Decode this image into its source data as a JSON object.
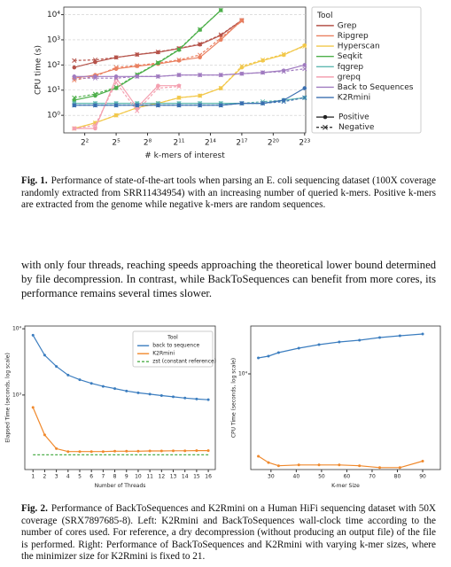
{
  "chart_data": [
    {
      "type": "line",
      "ylabel": "CPU time (s)",
      "xlabel": "# k-mers of interest",
      "xscale": "log2",
      "yscale": "log",
      "grid": true,
      "legend_title": "Tool",
      "style_legend": [
        "Positive",
        "Negative"
      ],
      "x": [
        2,
        8,
        32,
        128,
        512,
        2048,
        8192,
        32768,
        131072,
        524288,
        2097152,
        8388608
      ],
      "xlim": [
        1,
        9000000
      ],
      "xticks": [
        {
          "value": 4,
          "label": "2²"
        },
        {
          "value": 32,
          "label": "2⁵"
        },
        {
          "value": 256,
          "label": "2⁸"
        },
        {
          "value": 2048,
          "label": "2¹¹"
        },
        {
          "value": 16384,
          "label": "2¹⁴"
        },
        {
          "value": 131072,
          "label": "2¹⁷"
        },
        {
          "value": 1048576,
          "label": "2²⁰"
        },
        {
          "value": 8388608,
          "label": "2²³"
        }
      ],
      "ylim": [
        0.2,
        20000
      ],
      "yticks": [
        {
          "value": 1,
          "label": "10⁰"
        },
        {
          "value": 10,
          "label": "10¹"
        },
        {
          "value": 100,
          "label": "10²"
        },
        {
          "value": 1000,
          "label": "10³"
        },
        {
          "value": 10000,
          "label": "10⁴"
        }
      ],
      "series": [
        {
          "name": "Grep",
          "color": "#b5534a",
          "values": [
            80,
            130,
            200,
            260,
            320,
            450,
            650,
            1500,
            6000,
            null,
            null,
            null
          ],
          "negative_values": [
            150,
            160,
            200,
            260,
            330,
            460,
            680,
            1600,
            6000,
            null,
            null,
            null
          ]
        },
        {
          "name": "Ripgrep",
          "color": "#ea8060",
          "values": [
            30,
            40,
            70,
            90,
            110,
            150,
            200,
            1000,
            6000,
            null,
            null,
            null
          ],
          "negative_values": [
            25,
            35,
            80,
            95,
            120,
            160,
            250,
            1200,
            5500,
            null,
            null,
            null
          ]
        },
        {
          "name": "Hyperscan",
          "color": "#f2c84b",
          "values": [
            0.3,
            0.5,
            1,
            2,
            3,
            5,
            6,
            12,
            80,
            150,
            250,
            600
          ],
          "negative_values": [
            0.3,
            0.5,
            1,
            2,
            3,
            5,
            6,
            12,
            90,
            160,
            270,
            550
          ]
        },
        {
          "name": "Seqkit",
          "color": "#4daf4a",
          "values": [
            4,
            6,
            12,
            40,
            120,
            400,
            2500,
            15000,
            null,
            null,
            null,
            null
          ],
          "negative_values": [
            5,
            7,
            13,
            42,
            125,
            420,
            2600,
            15000,
            null,
            null,
            null,
            null
          ]
        },
        {
          "name": "fqgrep",
          "color": "#5fb8b0",
          "values": [
            3,
            3,
            3,
            3,
            3,
            3,
            3,
            3,
            3,
            3,
            4,
            5
          ],
          "negative_values": [
            3,
            3,
            3,
            3,
            3,
            3,
            3,
            3,
            3,
            3.5,
            4,
            5
          ]
        },
        {
          "name": "grepq",
          "color": "#f4a0b0",
          "values": [
            0.3,
            0.3,
            30,
            2,
            15,
            15,
            null,
            null,
            null,
            null,
            null,
            null
          ],
          "negative_values": [
            0.3,
            0.4,
            20,
            1.5,
            12,
            14,
            null,
            null,
            null,
            null,
            null,
            null
          ]
        },
        {
          "name": "Back to Sequences",
          "color": "#a07bc0",
          "values": [
            35,
            35,
            35,
            35,
            35,
            40,
            40,
            40,
            45,
            50,
            60,
            100
          ],
          "negative_values": [
            30,
            30,
            30,
            35,
            35,
            40,
            40,
            40,
            45,
            50,
            55,
            70
          ]
        },
        {
          "name": "K2Rmini",
          "color": "#3a6fb0",
          "values": [
            2.5,
            2.5,
            2.5,
            2.5,
            2.5,
            2.5,
            2.5,
            2.5,
            3,
            3,
            4,
            12
          ],
          "negative_values": [
            2.5,
            2.5,
            2.5,
            2.5,
            2.5,
            2.5,
            2.5,
            2.5,
            3,
            3,
            3.5,
            5
          ]
        }
      ]
    },
    {
      "type": "line",
      "ylabel": "Elapsed Time (seconds, log scale)",
      "xlabel": "Number of Threads",
      "xscale": "linear",
      "yscale": "log",
      "legend_title": "Tool",
      "x": [
        1,
        2,
        3,
        4,
        5,
        6,
        7,
        8,
        9,
        10,
        11,
        12,
        13,
        14,
        15,
        16
      ],
      "xlim": [
        0.3,
        16.6
      ],
      "xticks": [
        1,
        2,
        3,
        4,
        5,
        6,
        7,
        8,
        9,
        10,
        11,
        12,
        13,
        14,
        15,
        16
      ],
      "ylim": [
        75,
        11000
      ],
      "yticks": [
        {
          "value": 1000,
          "label": "10³"
        },
        {
          "value": 10000,
          "label": "10⁴"
        }
      ],
      "series": [
        {
          "name": "back to sequence",
          "color": "#3b7dbf",
          "values": [
            8000,
            4000,
            2700,
            2000,
            1700,
            1500,
            1350,
            1250,
            1150,
            1080,
            1030,
            980,
            940,
            900,
            870,
            850
          ]
        },
        {
          "name": "K2Rmini",
          "color": "#f0892c",
          "values": [
            650,
            250,
            155,
            140,
            140,
            140,
            140,
            142,
            142,
            142,
            143,
            143,
            144,
            144,
            145,
            145
          ]
        },
        {
          "name": "zst (constant reference)",
          "color": "#4daf4a",
          "line_style": "dashed",
          "values": [
            125,
            125,
            125,
            125,
            125,
            125,
            125,
            125,
            125,
            125,
            125,
            125,
            125,
            125,
            125,
            125
          ]
        }
      ]
    },
    {
      "type": "line",
      "ylabel": "CPU Time (seconds, log scale)",
      "xlabel": "K-mer Size",
      "xscale": "linear",
      "yscale": "log",
      "x": [
        25,
        29,
        33,
        41,
        49,
        57,
        65,
        73,
        81,
        90
      ],
      "xlim": [
        22,
        97
      ],
      "xticks": [
        30,
        40,
        50,
        60,
        70,
        80,
        90
      ],
      "ylim": [
        100,
        100000
      ],
      "yticks": [
        {
          "value": 10000,
          "label": "10⁴"
        }
      ],
      "series": [
        {
          "name": "back to sequence",
          "color": "#3b7dbf",
          "values": [
            21500,
            23500,
            27800,
            34400,
            40800,
            46500,
            50500,
            57400,
            62500,
            68000
          ]
        },
        {
          "name": "K2Rmini",
          "color": "#f0892c",
          "values": [
            190,
            140,
            120,
            125,
            125,
            125,
            120,
            110,
            110,
            150
          ]
        }
      ]
    }
  ],
  "captions": [
    {
      "label": "Fig. 1.",
      "text": "Performance of state-of-the-art tools when parsing an E. coli sequencing dataset (100X coverage randomly extracted from SRR11434954) with an increasing number of queried k-mers. Positive k-mers are extracted from the genome while negative k-mers are random sequences."
    },
    {
      "label": "Fig. 2.",
      "text": "Performance of BackToSequences and K2Rmini on a Human HiFi sequencing dataset with 50X coverage (SRX7897685-8). Left: K2Rmini and BackToSequences wall-clock time according to the number of cores used. For reference, a dry decompression (without producing an output file) of the file is performed. Right: Performance of BackToSequences and K2Rmini with varying k-mer sizes, where the minimizer size for K2Rmini is fixed to 21."
    }
  ],
  "paragraph": "with only four threads, reaching speeds approaching the theoretical lower bound determined by file decompression. In contrast, while BackToSequences can benefit from more cores, its performance remains several times slower."
}
